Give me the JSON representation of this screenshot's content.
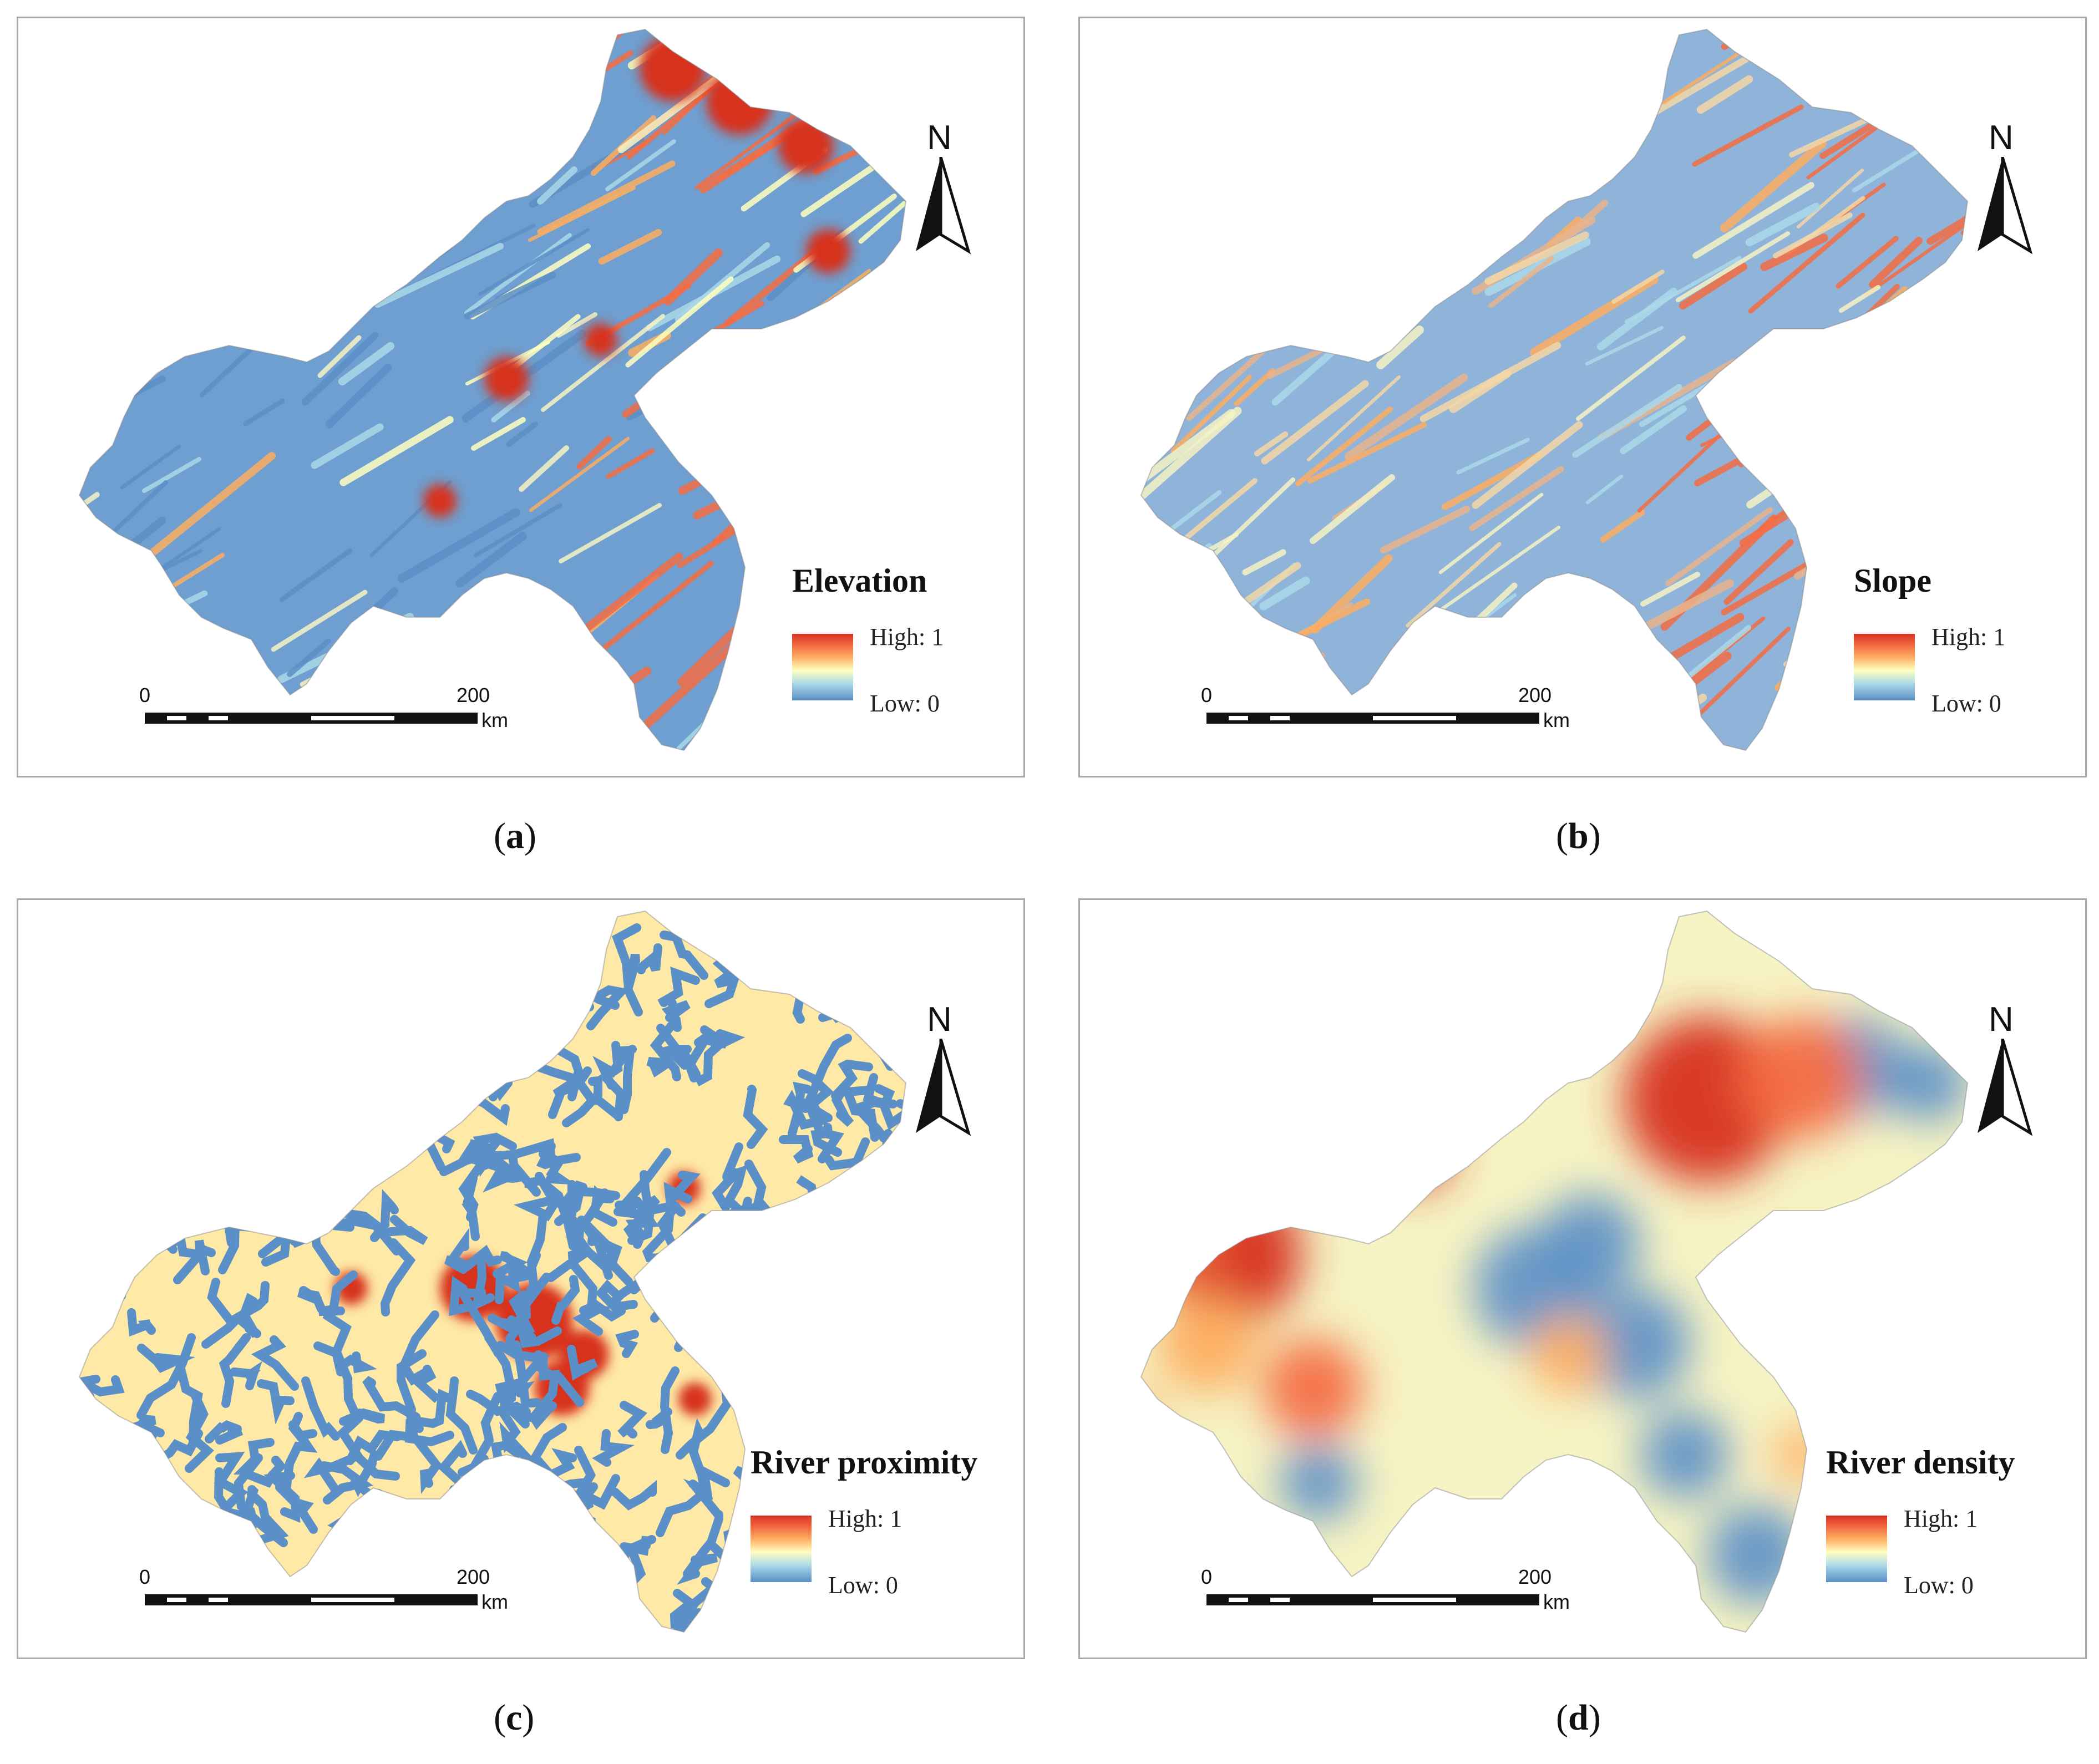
{
  "colors": {
    "high": "#d7301f",
    "mid": "#ffffbf",
    "low": "#5b8fc7",
    "frame": "#a9a9a9"
  },
  "north_label": "N",
  "scale": {
    "zero": "0",
    "max": "200",
    "unit": "km"
  },
  "legend": {
    "high": "High: 1",
    "low": "Low: 0"
  },
  "panels": [
    {
      "id": "a",
      "title": "Elevation",
      "caption_letter": "a",
      "pattern": "elevation"
    },
    {
      "id": "b",
      "title": "Slope",
      "caption_letter": "b",
      "pattern": "slope"
    },
    {
      "id": "c",
      "title": "River proximity",
      "caption_letter": "c",
      "pattern": "proximity"
    },
    {
      "id": "d",
      "title": "River density",
      "caption_letter": "d",
      "pattern": "density"
    }
  ]
}
